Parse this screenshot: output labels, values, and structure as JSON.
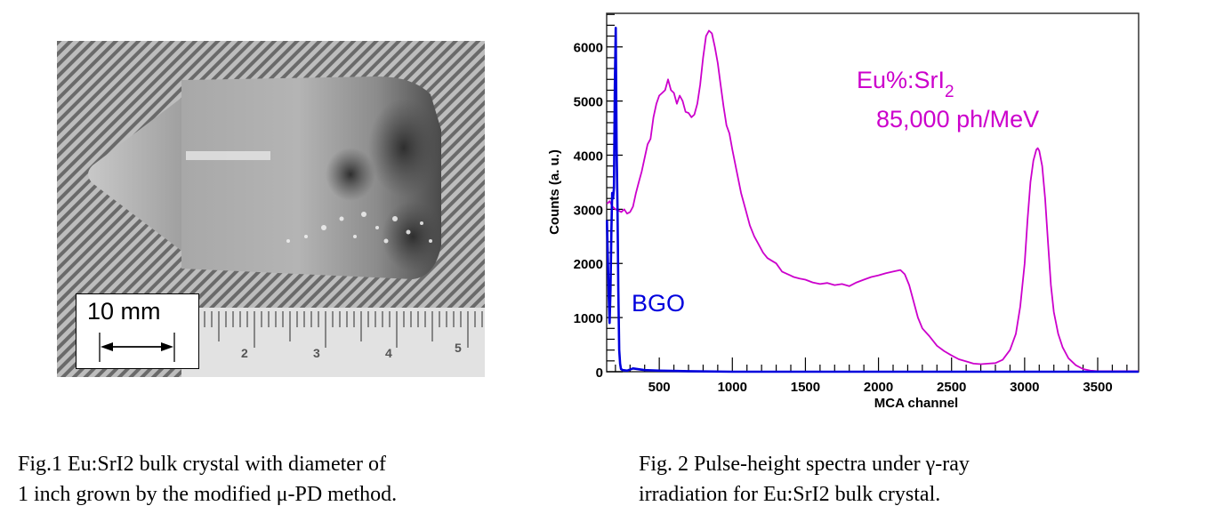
{
  "figure1": {
    "scale_bar_label": "10 mm",
    "ruler_labels": [
      "2",
      "3",
      "4",
      "5"
    ],
    "caption_lines": [
      "Fig.1 Eu:SrI2 bulk crystal with diameter of",
      "1 inch grown by the modified μ-PD method."
    ]
  },
  "figure2": {
    "caption_lines": [
      "Fig. 2 Pulse-height  spectra  under γ-ray",
      "irradiation  for Eu:SrI2 bulk crystal."
    ]
  },
  "chart_data": {
    "type": "line",
    "title": "",
    "xlabel": "MCA channel",
    "ylabel": "Counts (a. u.)",
    "xlim": [
      140,
      3780
    ],
    "ylim": [
      0,
      6620
    ],
    "xticks": [
      500,
      1000,
      1500,
      2000,
      2500,
      3000,
      3500
    ],
    "xtick_labels": [
      "500",
      "1000",
      "1500",
      "2000",
      "2500",
      "3000",
      "3500"
    ],
    "yticks": [
      0,
      1000,
      2000,
      3000,
      4000,
      5000,
      6000
    ],
    "ytick_labels": [
      "0",
      "1000",
      "2000",
      "3000",
      "4000",
      "5000",
      "6000"
    ],
    "grid": false,
    "colors": {
      "srI2": "#cc00cc",
      "bgo": "#0000dd",
      "axis": "#000000"
    },
    "annotations": {
      "srI2_name": "Eu%:SrI",
      "srI2_subscript": "2",
      "srI2_yield": "85,000 ph/MeV",
      "bgo_name": "BGO"
    },
    "series": [
      {
        "name": "Eu%:SrI2",
        "x": [
          142,
          160,
          180,
          200,
          220,
          240,
          260,
          280,
          300,
          320,
          340,
          360,
          380,
          400,
          420,
          440,
          460,
          480,
          500,
          520,
          540,
          560,
          580,
          600,
          620,
          640,
          660,
          680,
          700,
          720,
          740,
          760,
          780,
          800,
          820,
          840,
          860,
          880,
          900,
          920,
          940,
          960,
          980,
          1000,
          1030,
          1060,
          1090,
          1120,
          1150,
          1180,
          1210,
          1240,
          1270,
          1300,
          1340,
          1380,
          1420,
          1460,
          1500,
          1550,
          1600,
          1650,
          1700,
          1750,
          1800,
          1850,
          1900,
          1950,
          2000,
          2050,
          2100,
          2150,
          2180,
          2210,
          2240,
          2270,
          2300,
          2350,
          2400,
          2450,
          2500,
          2550,
          2600,
          2650,
          2700,
          2750,
          2800,
          2850,
          2900,
          2940,
          2970,
          3000,
          3020,
          3040,
          3060,
          3080,
          3090,
          3100,
          3120,
          3140,
          3160,
          3180,
          3200,
          3230,
          3260,
          3300,
          3350,
          3400,
          3450,
          3500,
          3600,
          3700,
          3780
        ],
        "y": [
          3100,
          3150,
          3050,
          3000,
          2980,
          2950,
          3000,
          2920,
          2950,
          3050,
          3300,
          3500,
          3700,
          3950,
          4200,
          4300,
          4700,
          4950,
          5100,
          5150,
          5200,
          5400,
          5200,
          5150,
          4950,
          5100,
          5000,
          4800,
          4780,
          4700,
          4750,
          4950,
          5300,
          5800,
          6200,
          6300,
          6250,
          6000,
          5700,
          5300,
          4900,
          4550,
          4400,
          4100,
          3700,
          3300,
          3000,
          2700,
          2500,
          2350,
          2200,
          2100,
          2050,
          2000,
          1850,
          1800,
          1750,
          1720,
          1700,
          1650,
          1620,
          1640,
          1600,
          1620,
          1580,
          1650,
          1700,
          1750,
          1780,
          1820,
          1850,
          1880,
          1800,
          1600,
          1300,
          1000,
          800,
          650,
          480,
          380,
          300,
          230,
          190,
          150,
          140,
          150,
          160,
          220,
          400,
          700,
          1200,
          2000,
          2800,
          3500,
          3900,
          4100,
          4130,
          4080,
          3800,
          3200,
          2400,
          1600,
          1100,
          700,
          450,
          250,
          120,
          50,
          20,
          10,
          10,
          10,
          10
        ]
      },
      {
        "name": "BGO",
        "x": [
          142,
          148,
          154,
          160,
          166,
          172,
          178,
          184,
          190,
          196,
          202,
          208,
          214,
          220,
          226,
          232,
          238,
          250,
          280,
          320,
          400,
          500,
          700,
          1000,
          2000,
          3000,
          3780
        ],
        "y": [
          2800,
          2100,
          1400,
          900,
          1500,
          2600,
          3300,
          3200,
          3400,
          5300,
          6350,
          4100,
          3000,
          1500,
          400,
          150,
          50,
          30,
          20,
          60,
          30,
          20,
          10,
          0,
          0,
          0,
          0
        ]
      }
    ]
  }
}
